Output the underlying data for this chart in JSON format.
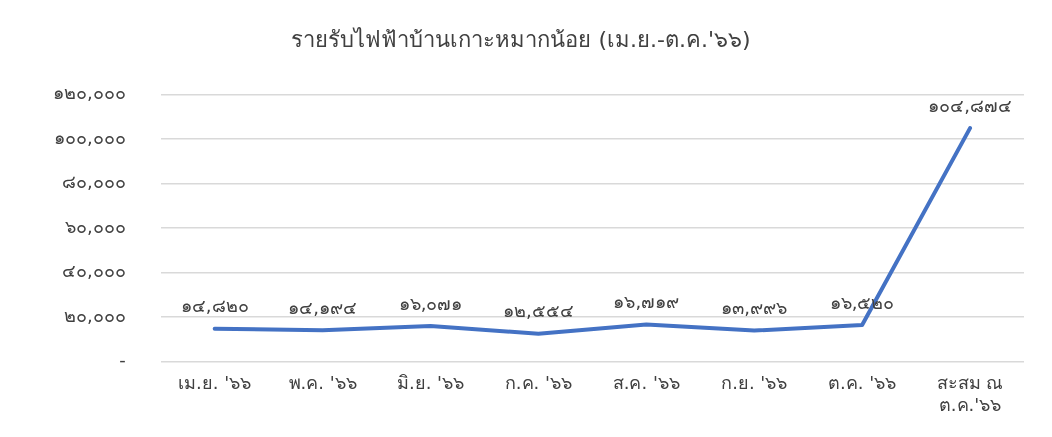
{
  "chart_data": {
    "type": "line",
    "title": "รายรับไฟฟ้าบ้านเกาะหมากน้อย (เม.ย.-ต.ค.'๖๖)",
    "categories": [
      "เม.ย. '๖๖",
      "พ.ค. '๖๖",
      "มิ.ย. '๖๖",
      "ก.ค. '๖๖",
      "ส.ค. '๖๖",
      "ก.ย. '๖๖",
      "ต.ค. '๖๖",
      "สะสม ณ ต.ค.'๖๖"
    ],
    "series": [
      {
        "color": "#4472c4",
        "values": [
          14820,
          14194,
          16071,
          12554,
          16719,
          13996,
          16520,
          104874
        ],
        "value_labels": [
          "๑๔,๘๒๐",
          "๑๔,๑๙๔",
          "๑๖,๐๗๑",
          "๑๒,๕๕๔",
          "๑๖,๗๑๙",
          "๑๓,๙๙๖",
          "๑๖,๕๒๐",
          "๑๐๔,๘๗๔"
        ]
      }
    ],
    "ylim": [
      0,
      120000
    ],
    "yticks": [
      {
        "value": 0,
        "label": "-"
      },
      {
        "value": 20000,
        "label": "๒๐,๐๐๐"
      },
      {
        "value": 40000,
        "label": "๔๐,๐๐๐"
      },
      {
        "value": 60000,
        "label": "๖๐,๐๐๐"
      },
      {
        "value": 80000,
        "label": "๘๐,๐๐๐"
      },
      {
        "value": 100000,
        "label": "๑๐๐,๐๐๐"
      },
      {
        "value": 120000,
        "label": "๑๒๐,๐๐๐"
      }
    ],
    "grid": "y",
    "legend": false,
    "marker": "none",
    "line_style": "solid"
  }
}
